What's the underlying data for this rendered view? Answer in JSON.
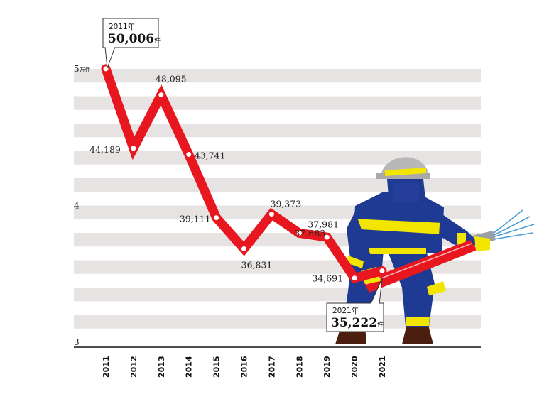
{
  "chart_data": {
    "type": "line",
    "x": [
      "2011",
      "2012",
      "2013",
      "2014",
      "2015",
      "2016",
      "2017",
      "2018",
      "2019",
      "2020",
      "2021"
    ],
    "values": [
      50006,
      44189,
      48095,
      43741,
      39111,
      36831,
      39373,
      37981,
      37683,
      34691,
      35222
    ],
    "value_labels": [
      "",
      "44,189",
      "48,095",
      "43,741",
      "39,111",
      "36,831",
      "39,373",
      "37,981",
      "37.683",
      "34,691",
      ""
    ],
    "y_ticks": [
      {
        "value": 50000,
        "label": "5",
        "unit": "万件"
      },
      {
        "value": 40000,
        "label": "4",
        "unit": ""
      },
      {
        "value": 30000,
        "label": "3",
        "unit": ""
      }
    ],
    "ylim": [
      30000,
      50000
    ],
    "grid": "horizontal stripes",
    "line_color": "#e8171f",
    "stripe_color": "#e8e3e3",
    "callouts": [
      {
        "year_label": "2011年",
        "value_text": "50,006",
        "unit": "件"
      },
      {
        "year_label": "2021年",
        "value_text": "35,222",
        "unit": "件"
      }
    ]
  }
}
